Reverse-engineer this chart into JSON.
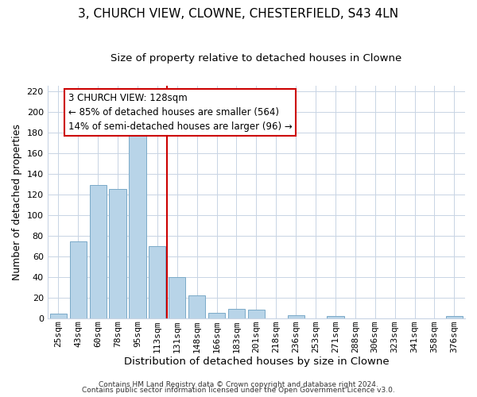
{
  "title": "3, CHURCH VIEW, CLOWNE, CHESTERFIELD, S43 4LN",
  "subtitle": "Size of property relative to detached houses in Clowne",
  "xlabel": "Distribution of detached houses by size in Clowne",
  "ylabel": "Number of detached properties",
  "bar_labels": [
    "25sqm",
    "43sqm",
    "60sqm",
    "78sqm",
    "95sqm",
    "113sqm",
    "131sqm",
    "148sqm",
    "166sqm",
    "183sqm",
    "201sqm",
    "218sqm",
    "236sqm",
    "253sqm",
    "271sqm",
    "288sqm",
    "306sqm",
    "323sqm",
    "341sqm",
    "358sqm",
    "376sqm"
  ],
  "bar_values": [
    4,
    74,
    129,
    125,
    177,
    70,
    40,
    22,
    5,
    9,
    8,
    0,
    3,
    0,
    2,
    0,
    0,
    0,
    0,
    0,
    2
  ],
  "bar_color": "#b8d4e8",
  "bar_edge_color": "#7aaac8",
  "vline_color": "#cc0000",
  "annotation_title": "3 CHURCH VIEW: 128sqm",
  "annotation_line1": "← 85% of detached houses are smaller (564)",
  "annotation_line2": "14% of semi-detached houses are larger (96) →",
  "annotation_box_color": "#ffffff",
  "annotation_box_edge": "#cc0000",
  "ylim": [
    0,
    225
  ],
  "yticks": [
    0,
    20,
    40,
    60,
    80,
    100,
    120,
    140,
    160,
    180,
    200,
    220
  ],
  "footer1": "Contains HM Land Registry data © Crown copyright and database right 2024.",
  "footer2": "Contains public sector information licensed under the Open Government Licence v3.0.",
  "title_fontsize": 11,
  "subtitle_fontsize": 9.5,
  "xlabel_fontsize": 9.5,
  "ylabel_fontsize": 9,
  "tick_fontsize": 8,
  "annotation_fontsize": 8.5,
  "footer_fontsize": 6.5,
  "background_color": "#ffffff",
  "grid_color": "#c8d4e4"
}
